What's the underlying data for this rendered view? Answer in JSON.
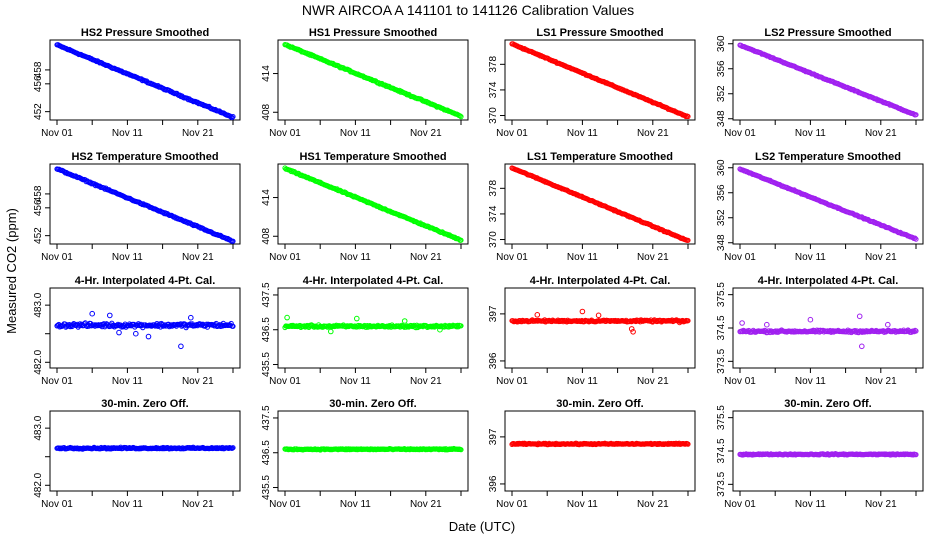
{
  "figure": {
    "title": "NWR   AIRCOA A   141101 to 141126   Calibration Values",
    "xlabel": "Date (UTC)",
    "ylabel": "Measured CO2 (ppm)",
    "x_ticks": [
      "Nov 01",
      "Nov 11",
      "Nov 21"
    ]
  },
  "colors": {
    "HS2": "#0000ff",
    "HS1": "#00ff00",
    "LS1": "#ff0000",
    "LS2": "#a020f0"
  },
  "chart_data": [
    {
      "type": "scatter",
      "row": 0,
      "col": 0,
      "series": "HS2",
      "title": "HS2 Pressure Smoothed",
      "kind": "trend",
      "start": 461.6,
      "end": 451.2,
      "noise": 0.15,
      "ylim": [
        450.8,
        462.3
      ],
      "y_ticks": [
        452,
        456,
        458
      ],
      "x_range": [
        1,
        26
      ]
    },
    {
      "type": "scatter",
      "row": 0,
      "col": 1,
      "series": "HS1",
      "title": "HS1 Pressure Smoothed",
      "kind": "trend",
      "start": 418.5,
      "end": 407.4,
      "noise": 0.15,
      "ylim": [
        406.8,
        419.2
      ],
      "y_ticks": [
        408,
        414
      ],
      "x_range": [
        1,
        26
      ]
    },
    {
      "type": "scatter",
      "row": 0,
      "col": 2,
      "series": "LS1",
      "title": "LS1 Pressure Smoothed",
      "kind": "trend",
      "start": 381.2,
      "end": 369.8,
      "noise": 0.12,
      "ylim": [
        369.3,
        381.8
      ],
      "y_ticks": [
        370,
        374,
        378
      ],
      "x_range": [
        1,
        26
      ]
    },
    {
      "type": "scatter",
      "row": 0,
      "col": 3,
      "series": "LS2",
      "title": "LS2 Pressure Smoothed",
      "kind": "trend",
      "start": 359.8,
      "end": 348.6,
      "noise": 0.12,
      "ylim": [
        347.8,
        360.6
      ],
      "y_ticks": [
        348,
        352,
        356,
        360
      ],
      "x_range": [
        1,
        26
      ]
    },
    {
      "type": "scatter",
      "row": 1,
      "col": 0,
      "series": "HS2",
      "title": "HS2 Temperature Smoothed",
      "kind": "trend",
      "start": 461.6,
      "end": 451.2,
      "noise": 0.15,
      "ylim": [
        450.8,
        462.3
      ],
      "y_ticks": [
        452,
        456,
        458
      ],
      "x_range": [
        1,
        26
      ]
    },
    {
      "type": "scatter",
      "row": 1,
      "col": 1,
      "series": "HS1",
      "title": "HS1 Temperature Smoothed",
      "kind": "trend",
      "start": 418.5,
      "end": 407.4,
      "noise": 0.15,
      "ylim": [
        406.8,
        419.2
      ],
      "y_ticks": [
        408,
        414
      ],
      "x_range": [
        1,
        26
      ]
    },
    {
      "type": "scatter",
      "row": 1,
      "col": 2,
      "series": "LS1",
      "title": "LS1 Temperature Smoothed",
      "kind": "trend",
      "start": 381.2,
      "end": 369.8,
      "noise": 0.12,
      "ylim": [
        369.3,
        381.8
      ],
      "y_ticks": [
        370,
        374,
        378
      ],
      "x_range": [
        1,
        26
      ]
    },
    {
      "type": "scatter",
      "row": 1,
      "col": 3,
      "series": "LS2",
      "title": "LS2 Temperature Smoothed",
      "kind": "trend",
      "start": 359.8,
      "end": 348.6,
      "noise": 0.12,
      "ylim": [
        347.8,
        360.6
      ],
      "y_ticks": [
        348,
        352,
        356,
        360
      ],
      "x_range": [
        1,
        26
      ]
    },
    {
      "type": "scatter",
      "row": 2,
      "col": 0,
      "series": "HS2",
      "title": "4-Hr. Interpolated 4-Pt. Cal.",
      "kind": "flat",
      "center": 482.65,
      "noise": 0.05,
      "outliers": [
        [
          6.0,
          482.85
        ],
        [
          8.5,
          482.82
        ],
        [
          12.2,
          482.5
        ],
        [
          14.0,
          482.45
        ],
        [
          18.6,
          482.28
        ],
        [
          20.0,
          482.78
        ],
        [
          9.8,
          482.52
        ]
      ],
      "ylim": [
        481.9,
        483.3
      ],
      "y_ticks": [
        482.0,
        482.5,
        483.0
      ],
      "y_tick_labels": [
        "482.0",
        "",
        "483.0"
      ],
      "x_range": [
        1,
        26
      ]
    },
    {
      "type": "scatter",
      "row": 2,
      "col": 1,
      "series": "HS1",
      "title": "4-Hr. Interpolated 4-Pt. Cal.",
      "kind": "flat",
      "center": 436.6,
      "noise": 0.05,
      "outliers": [
        [
          1.3,
          436.85
        ],
        [
          7.5,
          436.45
        ],
        [
          11.2,
          436.82
        ],
        [
          18.0,
          436.75
        ],
        [
          23.0,
          436.5
        ]
      ],
      "ylim": [
        435.4,
        437.7
      ],
      "y_ticks": [
        435.5,
        436.5,
        437.5
      ],
      "x_range": [
        1,
        26
      ]
    },
    {
      "type": "scatter",
      "row": 2,
      "col": 2,
      "series": "LS1",
      "title": "4-Hr. Interpolated 4-Pt. Cal.",
      "kind": "flat",
      "center": 396.85,
      "noise": 0.03,
      "outliers": [
        [
          4.6,
          396.98
        ],
        [
          11.0,
          397.05
        ],
        [
          13.3,
          396.97
        ],
        [
          18.0,
          396.68
        ],
        [
          18.2,
          396.62
        ],
        [
          24.8,
          396.82
        ]
      ],
      "ylim": [
        395.85,
        397.55
      ],
      "y_ticks": [
        396.0,
        397.0
      ],
      "x_range": [
        1,
        26
      ]
    },
    {
      "type": "scatter",
      "row": 2,
      "col": 3,
      "series": "LS2",
      "title": "4-Hr. Interpolated 4-Pt. Cal.",
      "kind": "flat",
      "center": 374.4,
      "noise": 0.05,
      "outliers": [
        [
          1.3,
          374.65
        ],
        [
          4.8,
          374.6
        ],
        [
          11.0,
          374.75
        ],
        [
          18.0,
          374.85
        ],
        [
          18.3,
          373.95
        ],
        [
          22.0,
          374.6
        ]
      ],
      "ylim": [
        373.3,
        375.7
      ],
      "y_ticks": [
        373.5,
        374.5,
        375.5
      ],
      "x_range": [
        1,
        26
      ]
    },
    {
      "type": "scatter",
      "row": 3,
      "col": 0,
      "series": "HS2",
      "title": "30-min. Zero Off.",
      "kind": "flat",
      "center": 482.65,
      "noise": 0.02,
      "outliers": [],
      "ylim": [
        481.9,
        483.3
      ],
      "y_ticks": [
        482.0,
        482.5,
        483.0
      ],
      "y_tick_labels": [
        "482.0",
        "",
        "483.0"
      ],
      "x_range": [
        1,
        26
      ]
    },
    {
      "type": "scatter",
      "row": 3,
      "col": 1,
      "series": "HS1",
      "title": "30-min. Zero Off.",
      "kind": "flat",
      "center": 436.6,
      "noise": 0.025,
      "outliers": [],
      "ylim": [
        435.4,
        437.7
      ],
      "y_ticks": [
        435.5,
        436.5,
        437.5
      ],
      "x_range": [
        1,
        26
      ]
    },
    {
      "type": "scatter",
      "row": 3,
      "col": 2,
      "series": "LS1",
      "title": "30-min. Zero Off.",
      "kind": "flat",
      "center": 396.85,
      "noise": 0.02,
      "outliers": [],
      "ylim": [
        395.85,
        397.55
      ],
      "y_ticks": [
        396.0,
        397.0
      ],
      "x_range": [
        1,
        26
      ]
    },
    {
      "type": "scatter",
      "row": 3,
      "col": 3,
      "series": "LS2",
      "title": "30-min. Zero Off.",
      "kind": "flat",
      "center": 374.4,
      "noise": 0.025,
      "outliers": [],
      "ylim": [
        373.3,
        375.7
      ],
      "y_ticks": [
        373.5,
        374.5,
        375.5
      ],
      "x_range": [
        1,
        26
      ]
    }
  ]
}
